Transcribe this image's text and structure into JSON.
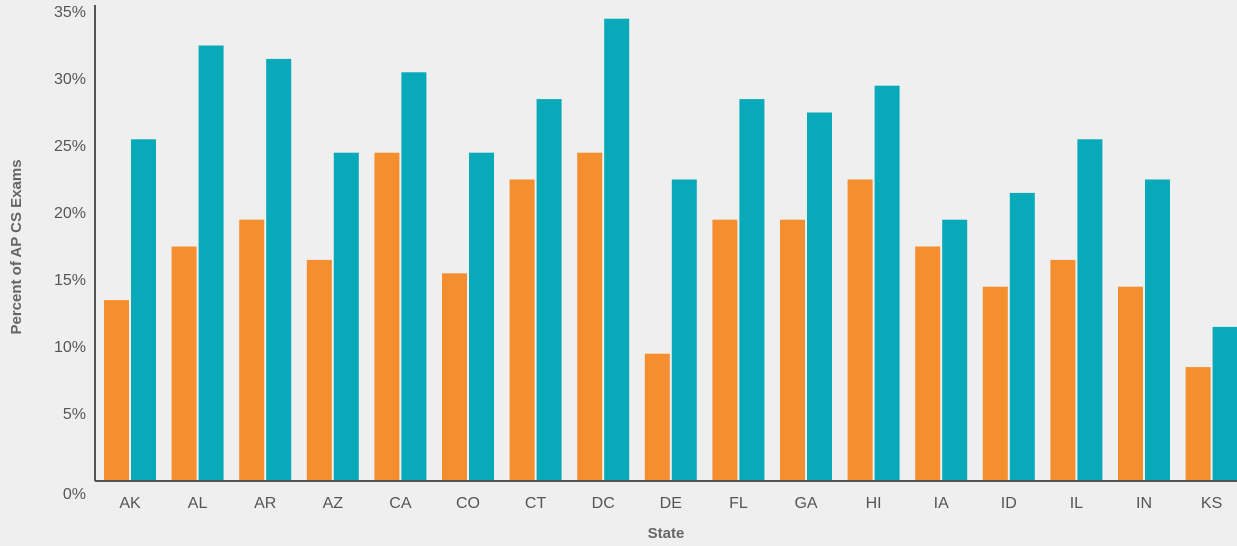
{
  "chart_data": {
    "type": "bar",
    "title": "",
    "xlabel": "State",
    "ylabel": "Percent of AP CS Exams",
    "ylim": [
      0,
      35
    ],
    "yticks": [
      "0%",
      "5%",
      "10%",
      "15%",
      "20%",
      "25%",
      "30%",
      "35%"
    ],
    "grid": false,
    "legend": "none",
    "categories": [
      "AK",
      "AL",
      "AR",
      "AZ",
      "CA",
      "CO",
      "CT",
      "DC",
      "DE",
      "FL",
      "GA",
      "HI",
      "IA",
      "ID",
      "IL",
      "IN",
      "KS"
    ],
    "series": [
      {
        "color": "#f48e2e",
        "values": [
          13.5,
          17.5,
          19.5,
          16.5,
          24.5,
          15.5,
          22.5,
          24.5,
          9.5,
          19.5,
          19.5,
          22.5,
          17.5,
          14.5,
          16.5,
          14.5,
          8.5
        ]
      },
      {
        "color": "#08a9b8",
        "values": [
          25.5,
          32.5,
          31.5,
          24.5,
          30.5,
          24.5,
          28.5,
          34.5,
          22.5,
          28.5,
          27.5,
          29.5,
          19.5,
          21.5,
          25.5,
          22.5,
          11.5
        ]
      }
    ]
  }
}
